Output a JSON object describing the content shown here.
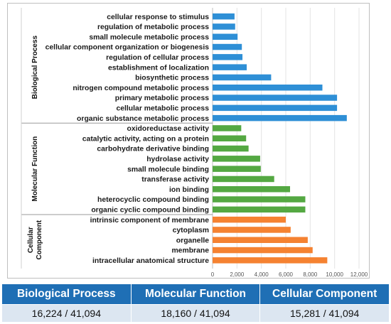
{
  "chart_data": {
    "type": "bar",
    "orientation": "horizontal",
    "colors": {
      "Biological Process": "#2e8fd6",
      "Molecular Function": "#54a842",
      "Cellular Component": "#f58231"
    },
    "xlim": [
      0,
      12000
    ],
    "xticks": [
      "0",
      "2,000",
      "4,000",
      "6,000",
      "8,000",
      "10,000",
      "12,000"
    ],
    "grid": "vertical",
    "groups": [
      {
        "name": "Biological Process",
        "title_lines": [
          "Biological Process"
        ],
        "categories": [
          "cellular response to stimulus",
          "regulation of metabolic process",
          "small molecule metabolic process",
          "cellular component organization or biogenesis",
          "regulation of cellular process",
          "establishment of localization",
          "biosynthetic process",
          "nitrogen compound metabolic process",
          "primary metabolic process",
          "cellular metabolic process",
          "organic substance metabolic process"
        ],
        "values": [
          1800,
          1850,
          2050,
          2400,
          2450,
          2800,
          4800,
          9000,
          10200,
          10200,
          11000
        ]
      },
      {
        "name": "Molecular Function",
        "title_lines": [
          "Molecular Function"
        ],
        "categories": [
          "oxidoreductase activity",
          "catalytic activity, acting on a protein",
          "carbohydrate derivative binding",
          "hydrolase activity",
          "small molecule binding",
          "transferase activity",
          "ion binding",
          "heterocyclic compound binding",
          "organic cyclic compound binding"
        ],
        "values": [
          2350,
          2750,
          2950,
          3900,
          3950,
          5050,
          6350,
          7600,
          7600
        ]
      },
      {
        "name": "Cellular Component",
        "title_lines": [
          "Cellular",
          "Component"
        ],
        "categories": [
          "intrinsic component of membrane",
          "cytoplasm",
          "organelle",
          "membrane",
          "intracellular anatomical structure"
        ],
        "values": [
          6000,
          6400,
          7800,
          8200,
          9400
        ]
      }
    ]
  },
  "summary_table": {
    "headers": [
      "Biological Process",
      "Molecular Function",
      "Cellular Component"
    ],
    "values": [
      "16,224 / 41,094",
      "18,160 / 41,094",
      "15,281 / 41,094"
    ]
  }
}
